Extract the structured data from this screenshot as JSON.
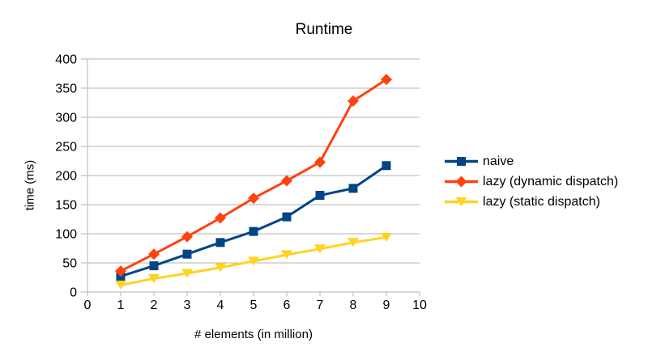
{
  "title": "Runtime",
  "chart_data": {
    "type": "line",
    "title": "Runtime",
    "xlabel": "# elements (in million)",
    "ylabel": "time (ms)",
    "xlim": [
      0,
      10
    ],
    "ylim": [
      0,
      400
    ],
    "x_ticks": [
      0,
      1,
      2,
      3,
      4,
      5,
      6,
      7,
      8,
      9,
      10
    ],
    "y_ticks": [
      0,
      50,
      100,
      150,
      200,
      250,
      300,
      350,
      400
    ],
    "grid": "horizontal",
    "grid_color": "#b3b3b3",
    "axis_color": "#b3b3b3",
    "legend_position": "right",
    "x": [
      1,
      2,
      3,
      4,
      5,
      6,
      7,
      8,
      9
    ],
    "series": [
      {
        "name": "naive",
        "color": "#004586",
        "marker": "square",
        "values": [
          27,
          45,
          65,
          85,
          104,
          129,
          166,
          178,
          217
        ]
      },
      {
        "name": "lazy (dynamic dispatch)",
        "color": "#ff420e",
        "marker": "diamond",
        "values": [
          36,
          65,
          95,
          127,
          161,
          191,
          223,
          328,
          365
        ]
      },
      {
        "name": "lazy (static dispatch)",
        "color": "#ffd320",
        "marker": "triangle-down",
        "values": [
          12,
          23,
          32,
          42,
          53,
          64,
          74,
          85,
          94
        ]
      }
    ]
  }
}
